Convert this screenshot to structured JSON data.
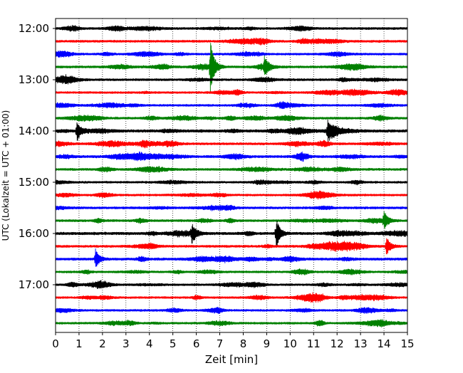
{
  "chart_data": {
    "type": "line",
    "title": "",
    "xlabel": "Zeit  [min]",
    "ylabel": "UTC (Lokalzeit = UTC + 01:00)",
    "xlim": [
      0,
      15
    ],
    "x_ticks": [
      "0",
      "1",
      "2",
      "3",
      "4",
      "5",
      "6",
      "7",
      "8",
      "9",
      "10",
      "11",
      "12",
      "13",
      "14",
      "15"
    ],
    "y_tick_labels": [
      "12:00",
      "13:00",
      "14:00",
      "15:00",
      "16:00",
      "17:00"
    ],
    "grid": "vertical dotted lines at each minute",
    "colors_cycle": [
      "#000000",
      "#ff0000",
      "#0000ff",
      "#008000"
    ],
    "series": [
      {
        "utc_start": "12:00",
        "color": "#000000",
        "amp": 1.0
      },
      {
        "utc_start": "12:15",
        "color": "#ff0000",
        "amp": 1.0
      },
      {
        "utc_start": "12:30",
        "color": "#0000ff",
        "amp": 0.9
      },
      {
        "utc_start": "12:45",
        "color": "#008000",
        "amp": 1.0,
        "events": [
          {
            "t": 6.6,
            "peak": 3.5
          },
          {
            "t": 8.9,
            "peak": 1.2
          }
        ]
      },
      {
        "utc_start": "13:00",
        "color": "#000000",
        "amp": 1.0
      },
      {
        "utc_start": "13:15",
        "color": "#ff0000",
        "amp": 0.9
      },
      {
        "utc_start": "13:30",
        "color": "#0000ff",
        "amp": 0.9
      },
      {
        "utc_start": "13:45",
        "color": "#008000",
        "amp": 1.0
      },
      {
        "utc_start": "14:00",
        "color": "#000000",
        "amp": 1.2,
        "events": [
          {
            "t": 0.9,
            "peak": 1.3
          },
          {
            "t": 11.6,
            "peak": 1.3
          }
        ]
      },
      {
        "utc_start": "14:15",
        "color": "#ff0000",
        "amp": 1.0
      },
      {
        "utc_start": "14:30",
        "color": "#0000ff",
        "amp": 1.1
      },
      {
        "utc_start": "14:45",
        "color": "#008000",
        "amp": 1.0
      },
      {
        "utc_start": "15:00",
        "color": "#000000",
        "amp": 0.9
      },
      {
        "utc_start": "15:15",
        "color": "#ff0000",
        "amp": 0.9
      },
      {
        "utc_start": "15:30",
        "color": "#0000ff",
        "amp": 1.0
      },
      {
        "utc_start": "15:45",
        "color": "#008000",
        "amp": 1.0,
        "events": [
          {
            "t": 14.0,
            "peak": 1.2
          }
        ]
      },
      {
        "utc_start": "16:00",
        "color": "#000000",
        "amp": 1.2,
        "events": [
          {
            "t": 9.4,
            "peak": 1.8
          },
          {
            "t": 5.8,
            "peak": 1.2
          }
        ]
      },
      {
        "utc_start": "16:15",
        "color": "#ff0000",
        "amp": 1.0,
        "events": [
          {
            "t": 14.1,
            "peak": 1.4
          }
        ]
      },
      {
        "utc_start": "16:30",
        "color": "#0000ff",
        "amp": 1.1,
        "events": [
          {
            "t": 1.7,
            "peak": 1.3
          }
        ]
      },
      {
        "utc_start": "16:45",
        "color": "#008000",
        "amp": 0.9
      },
      {
        "utc_start": "17:00",
        "color": "#000000",
        "amp": 0.9
      },
      {
        "utc_start": "17:15",
        "color": "#ff0000",
        "amp": 0.9
      },
      {
        "utc_start": "17:30",
        "color": "#0000ff",
        "amp": 0.9
      },
      {
        "utc_start": "17:45",
        "color": "#008000",
        "amp": 0.9
      }
    ]
  }
}
